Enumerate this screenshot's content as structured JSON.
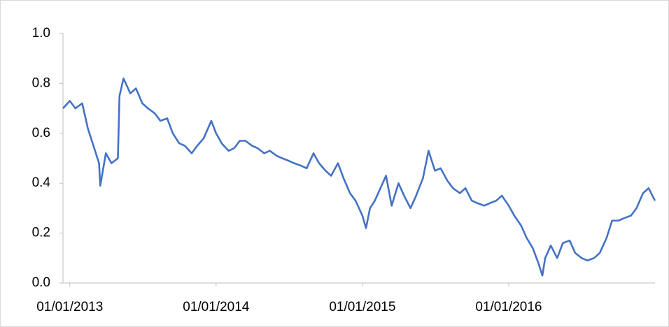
{
  "chart_data": {
    "type": "line",
    "x": [
      "2012-12-15",
      "2013-01-01",
      "2013-01-15",
      "2013-02-01",
      "2013-02-15",
      "2013-03-01",
      "2013-03-15",
      "2013-03-18",
      "2013-04-01",
      "2013-04-15",
      "2013-05-01",
      "2013-05-05",
      "2013-05-15",
      "2013-06-01",
      "2013-06-15",
      "2013-07-01",
      "2013-07-15",
      "2013-08-01",
      "2013-08-15",
      "2013-09-01",
      "2013-09-15",
      "2013-10-01",
      "2013-10-15",
      "2013-11-01",
      "2013-11-15",
      "2013-12-01",
      "2013-12-20",
      "2014-01-01",
      "2014-01-15",
      "2014-02-01",
      "2014-02-15",
      "2014-03-01",
      "2014-03-15",
      "2014-04-01",
      "2014-04-15",
      "2014-05-01",
      "2014-05-15",
      "2014-06-01",
      "2014-06-15",
      "2014-07-01",
      "2014-07-15",
      "2014-08-01",
      "2014-08-15",
      "2014-09-01",
      "2014-09-15",
      "2014-10-01",
      "2014-10-15",
      "2014-11-01",
      "2014-11-15",
      "2014-12-01",
      "2014-12-15",
      "2015-01-01",
      "2015-01-10",
      "2015-01-20",
      "2015-02-01",
      "2015-02-15",
      "2015-03-01",
      "2015-03-15",
      "2015-04-01",
      "2015-04-15",
      "2015-05-01",
      "2015-05-15",
      "2015-06-01",
      "2015-06-15",
      "2015-07-01",
      "2015-07-15",
      "2015-08-01",
      "2015-08-15",
      "2015-09-01",
      "2015-09-15",
      "2015-10-01",
      "2015-10-15",
      "2015-11-01",
      "2015-11-15",
      "2015-12-01",
      "2015-12-15",
      "2016-01-01",
      "2016-01-15",
      "2016-02-01",
      "2016-02-15",
      "2016-03-01",
      "2016-03-15",
      "2016-03-25",
      "2016-04-01",
      "2016-04-15",
      "2016-05-01",
      "2016-05-15",
      "2016-06-01",
      "2016-06-15",
      "2016-07-01",
      "2016-07-15",
      "2016-08-01",
      "2016-08-15",
      "2016-09-01",
      "2016-09-15",
      "2016-10-01",
      "2016-10-15",
      "2016-11-01",
      "2016-11-15",
      "2016-12-01",
      "2016-12-15",
      "2016-12-31"
    ],
    "series": [
      {
        "color": "#4472c4",
        "values": [
          0.7,
          0.73,
          0.7,
          0.72,
          0.62,
          0.55,
          0.48,
          0.39,
          0.52,
          0.48,
          0.5,
          0.75,
          0.82,
          0.76,
          0.78,
          0.72,
          0.7,
          0.68,
          0.65,
          0.66,
          0.6,
          0.56,
          0.55,
          0.52,
          0.55,
          0.58,
          0.65,
          0.6,
          0.56,
          0.53,
          0.54,
          0.57,
          0.57,
          0.55,
          0.54,
          0.52,
          0.53,
          0.51,
          0.5,
          0.49,
          0.48,
          0.47,
          0.46,
          0.52,
          0.48,
          0.45,
          0.43,
          0.48,
          0.42,
          0.36,
          0.33,
          0.27,
          0.22,
          0.3,
          0.33,
          0.38,
          0.43,
          0.31,
          0.4,
          0.35,
          0.3,
          0.35,
          0.42,
          0.53,
          0.45,
          0.46,
          0.41,
          0.38,
          0.36,
          0.38,
          0.33,
          0.32,
          0.31,
          0.32,
          0.33,
          0.35,
          0.31,
          0.27,
          0.23,
          0.18,
          0.14,
          0.08,
          0.03,
          0.1,
          0.15,
          0.1,
          0.16,
          0.17,
          0.12,
          0.1,
          0.09,
          0.1,
          0.12,
          0.18,
          0.25,
          0.25,
          0.26,
          0.27,
          0.3,
          0.36,
          0.38,
          0.33
        ]
      }
    ],
    "xlim": [
      "2012-12-15",
      "2016-12-31"
    ],
    "xticks": [
      {
        "value": "2013-01-01",
        "label": "01/01/2013"
      },
      {
        "value": "2014-01-01",
        "label": "01/01/2014"
      },
      {
        "value": "2015-01-01",
        "label": "01/01/2015"
      },
      {
        "value": "2016-01-01",
        "label": "01/01/2016"
      }
    ],
    "ylim": [
      0,
      1
    ],
    "yticks": [
      {
        "value": 0,
        "label": "0.0"
      },
      0.2,
      0.4,
      0.6,
      0.8,
      {
        "value": 1,
        "label": "1.0"
      }
    ],
    "grid": false
  }
}
